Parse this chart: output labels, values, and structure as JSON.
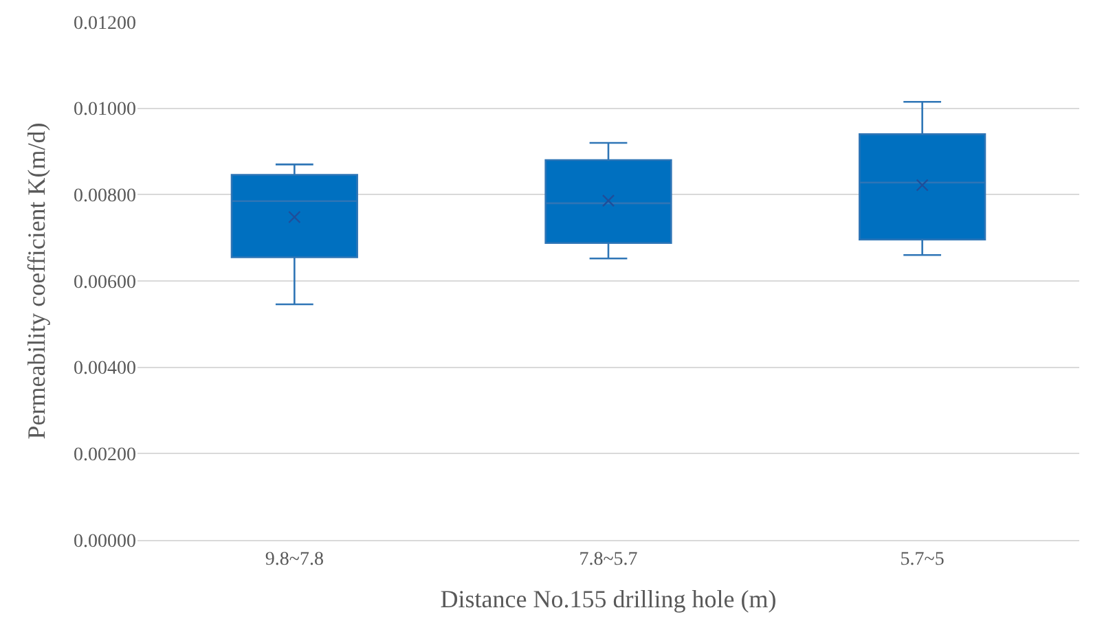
{
  "chart_data": {
    "type": "box",
    "xlabel": "Distance No.155 drilling hole (m)",
    "ylabel": "Permeability coefficient K(m/d)",
    "categories": [
      "9.8~7.8",
      "7.8~5.7",
      "5.7~5"
    ],
    "boxes": [
      {
        "low": 0.00546,
        "q1": 0.00655,
        "median": 0.00785,
        "q3": 0.00846,
        "high": 0.0087,
        "mean": 0.00748
      },
      {
        "low": 0.00652,
        "q1": 0.00688,
        "median": 0.0078,
        "q3": 0.0088,
        "high": 0.0092,
        "mean": 0.00786
      },
      {
        "low": 0.0066,
        "q1": 0.00696,
        "median": 0.00828,
        "q3": 0.0094,
        "high": 0.01015,
        "mean": 0.00822
      }
    ],
    "color": "#0070c0",
    "ylim": [
      0,
      0.012
    ],
    "yticks": [
      {
        "value": 0,
        "label": "0.00000"
      },
      {
        "value": 0.002,
        "label": "0.00200"
      },
      {
        "value": 0.004,
        "label": "0.00400"
      },
      {
        "value": 0.006,
        "label": "0.00600"
      },
      {
        "value": 0.008,
        "label": "0.00800"
      },
      {
        "value": 0.01,
        "label": "0.01000"
      },
      {
        "value": 0.012,
        "label": "0.01200"
      }
    ],
    "grid": "y"
  }
}
